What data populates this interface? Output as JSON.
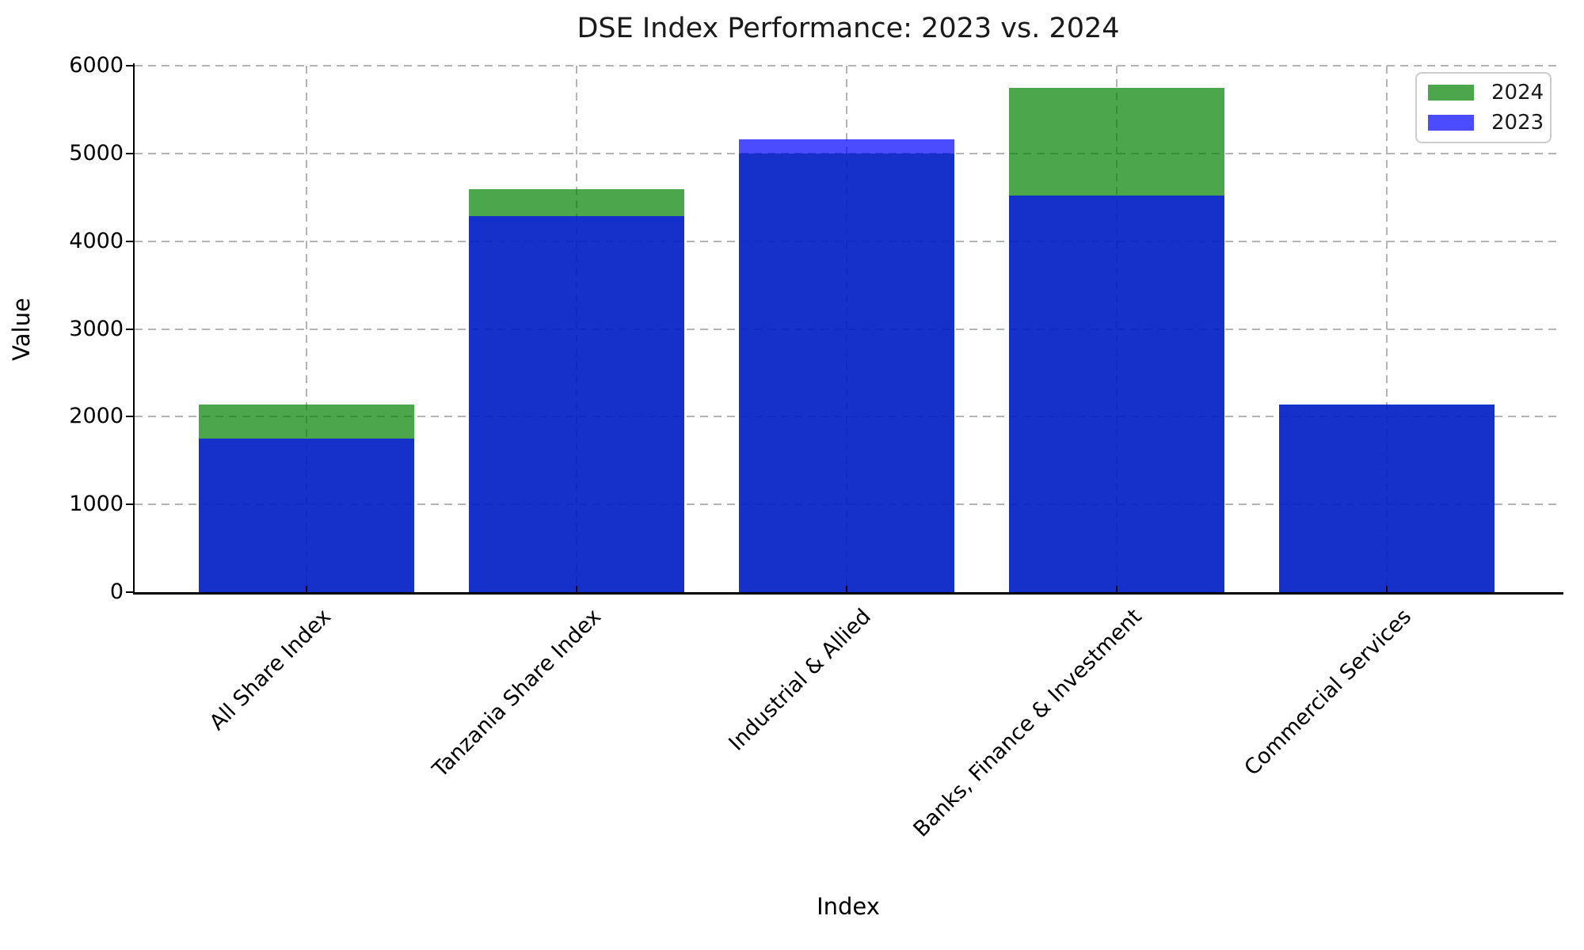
{
  "title": "DSE Index Performance: 2023 vs. 2024",
  "axes": {
    "x_label": "Index",
    "y_label": "Value",
    "y_ticks": [
      0,
      1000,
      2000,
      3000,
      4000,
      5000,
      6000
    ],
    "y_max": 6000
  },
  "legend": {
    "position": "upper right",
    "entries": [
      {
        "label": "2024",
        "color": "#4ca64c"
      },
      {
        "label": "2023",
        "color": "#4c4cff"
      }
    ]
  },
  "colors": {
    "green_fill_on_white": "#4ca64c",
    "blue_fill_on_white": "#4c4cff",
    "blue_over_green": "#1732c9",
    "grid": "#b4b4b4",
    "spine": "#000000"
  },
  "chart_data": {
    "type": "bar",
    "title": "DSE Index Performance: 2023 vs. 2024",
    "xlabel": "Index",
    "ylabel": "Value",
    "ylim": [
      0,
      6000
    ],
    "grid": true,
    "legend_position": "upper right",
    "overlap_mode": "overlaid bars (not stacked); 2024 green drawn first, 2023 blue drawn on top with alpha 0.7",
    "categories": [
      "All Share Index",
      "Tanzania Share Index",
      "Industrial & Allied",
      "Banks, Finance & Investment",
      "Commercial Services"
    ],
    "series": [
      {
        "name": "2024",
        "fill": "rgba(0,128,0,0.7)",
        "values": [
          2140,
          4590,
          5000,
          5750,
          2140
        ]
      },
      {
        "name": "2023",
        "fill": "rgba(0,0,255,0.7)",
        "values": [
          1750,
          4290,
          5160,
          4520,
          2140
        ]
      }
    ]
  }
}
